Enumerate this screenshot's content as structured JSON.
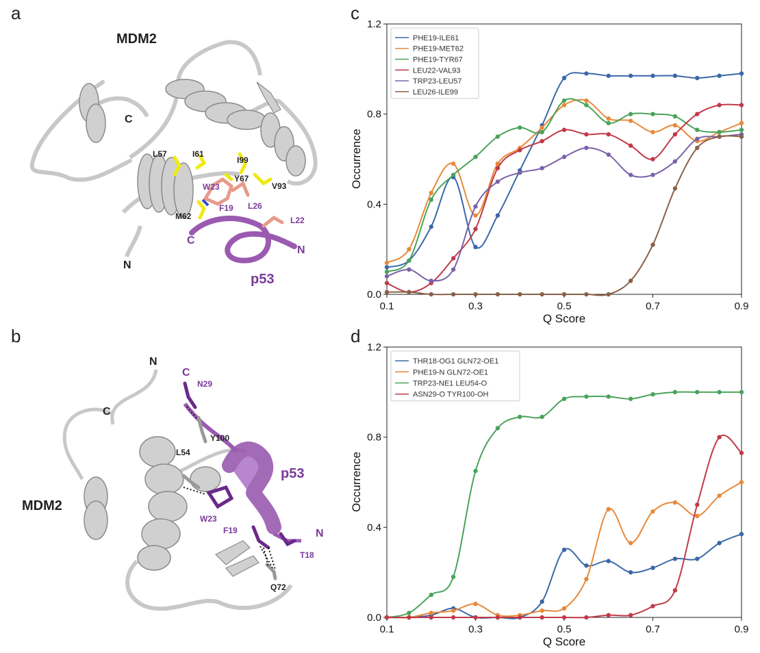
{
  "panels": {
    "a": {
      "letter": "a",
      "labels": {
        "protein": "MDM2",
        "peptide": "p53",
        "c_term": "C",
        "n_term": "N",
        "pep_c": "C",
        "pep_n": "N",
        "L57": "L57",
        "I61": "I61",
        "I99": "I99",
        "Y67": "Y67",
        "V93": "V93",
        "M62": "M62",
        "W23": "W23",
        "F19": "F19",
        "L26": "L26",
        "L22": "L22"
      }
    },
    "b": {
      "letter": "b",
      "labels": {
        "protein": "MDM2",
        "peptide": "p53",
        "n_top": "N",
        "c_left": "C",
        "pep_c": "C",
        "pep_n": "N",
        "N29": "N29",
        "Y100": "Y100",
        "L54": "L54",
        "W23": "W23",
        "F19": "F19",
        "T18": "T18",
        "Q72": "Q72"
      }
    },
    "c": {
      "letter": "c"
    },
    "d": {
      "letter": "d"
    }
  },
  "colors": {
    "protein": "#c8c8c8",
    "peptide": "#9a5ab0",
    "residue_yellow": "#f0ea10",
    "residue_salmon": "#e89a8a",
    "label_purple": "#7a3a9a"
  },
  "chart_data": [
    {
      "id": "c",
      "type": "line",
      "xlabel": "Q Score",
      "ylabel": "Occurrence",
      "xlim": [
        0.1,
        0.9
      ],
      "ylim": [
        0.0,
        1.2
      ],
      "xticks": [
        "0.1",
        "0.3",
        "0.5",
        "0.7",
        "0.9"
      ],
      "yticks": [
        "0.0",
        "0.4",
        "0.8",
        "1.2"
      ],
      "legend_position": "top-left",
      "grid": false,
      "x": [
        0.1,
        0.15,
        0.2,
        0.25,
        0.3,
        0.35,
        0.4,
        0.45,
        0.5,
        0.55,
        0.6,
        0.65,
        0.7,
        0.75,
        0.8,
        0.85,
        0.9
      ],
      "series": [
        {
          "name": "PHE19-ILE61",
          "color": "#3a67a8",
          "values": [
            0.12,
            0.15,
            0.3,
            0.52,
            0.21,
            0.35,
            0.55,
            0.75,
            0.96,
            0.98,
            0.97,
            0.97,
            0.97,
            0.97,
            0.96,
            0.97,
            0.98
          ]
        },
        {
          "name": "PHE19-MET62",
          "color": "#e8893a",
          "values": [
            0.14,
            0.2,
            0.45,
            0.58,
            0.35,
            0.58,
            0.65,
            0.74,
            0.84,
            0.86,
            0.78,
            0.77,
            0.72,
            0.75,
            0.68,
            0.72,
            0.76
          ]
        },
        {
          "name": "PHE19-TYR67",
          "color": "#4aa35a",
          "values": [
            0.1,
            0.15,
            0.42,
            0.53,
            0.61,
            0.7,
            0.74,
            0.72,
            0.86,
            0.84,
            0.76,
            0.8,
            0.8,
            0.79,
            0.73,
            0.72,
            0.73
          ]
        },
        {
          "name": "LEU22-VAL93",
          "color": "#c03a48",
          "values": [
            0.05,
            0.01,
            0.05,
            0.16,
            0.29,
            0.56,
            0.64,
            0.68,
            0.73,
            0.71,
            0.71,
            0.66,
            0.6,
            0.71,
            0.8,
            0.84,
            0.84
          ]
        },
        {
          "name": "TRP23-LEU57",
          "color": "#7a62a8",
          "values": [
            0.08,
            0.11,
            0.06,
            0.11,
            0.39,
            0.5,
            0.54,
            0.56,
            0.61,
            0.65,
            0.62,
            0.53,
            0.53,
            0.59,
            0.69,
            0.7,
            0.71
          ]
        },
        {
          "name": "LEU26-ILE99",
          "color": "#8a6048",
          "values": [
            0.01,
            0.01,
            0.0,
            0.0,
            0.0,
            0.0,
            0.0,
            0.0,
            0.0,
            0.0,
            0.0,
            0.06,
            0.22,
            0.47,
            0.65,
            0.7,
            0.7
          ]
        }
      ]
    },
    {
      "id": "d",
      "type": "line",
      "xlabel": "Q Score",
      "ylabel": "Occurrence",
      "xlim": [
        0.1,
        0.9
      ],
      "ylim": [
        0.0,
        1.2
      ],
      "xticks": [
        "0.1",
        "0.3",
        "0.5",
        "0.7",
        "0.9"
      ],
      "yticks": [
        "0.0",
        "0.4",
        "0.8",
        "1.2"
      ],
      "legend_position": "top-left",
      "grid": false,
      "x": [
        0.1,
        0.15,
        0.2,
        0.25,
        0.3,
        0.35,
        0.4,
        0.45,
        0.5,
        0.55,
        0.6,
        0.65,
        0.7,
        0.75,
        0.8,
        0.85,
        0.9
      ],
      "series": [
        {
          "name": "THR18-OG1 GLN72-OE1",
          "color": "#3a67a8",
          "values": [
            0.0,
            0.0,
            0.01,
            0.04,
            0.0,
            0.0,
            0.0,
            0.07,
            0.3,
            0.23,
            0.25,
            0.2,
            0.22,
            0.26,
            0.26,
            0.33,
            0.37
          ]
        },
        {
          "name": "PHE19-N GLN72-OE1",
          "color": "#e8893a",
          "values": [
            0.0,
            0.0,
            0.02,
            0.03,
            0.06,
            0.01,
            0.01,
            0.03,
            0.04,
            0.17,
            0.48,
            0.33,
            0.47,
            0.51,
            0.45,
            0.54,
            0.6
          ]
        },
        {
          "name": "TRP23-NE1 LEU54-O",
          "color": "#4aa35a",
          "values": [
            0.0,
            0.02,
            0.1,
            0.18,
            0.65,
            0.84,
            0.89,
            0.89,
            0.97,
            0.98,
            0.98,
            0.97,
            0.99,
            1.0,
            1.0,
            1.0,
            1.0
          ]
        },
        {
          "name": "ASN29-O TYR100-OH",
          "color": "#c03a48",
          "values": [
            0.0,
            0.0,
            0.0,
            0.0,
            0.0,
            0.0,
            0.0,
            0.0,
            0.0,
            0.0,
            0.01,
            0.01,
            0.05,
            0.12,
            0.5,
            0.8,
            0.73
          ]
        }
      ]
    }
  ]
}
